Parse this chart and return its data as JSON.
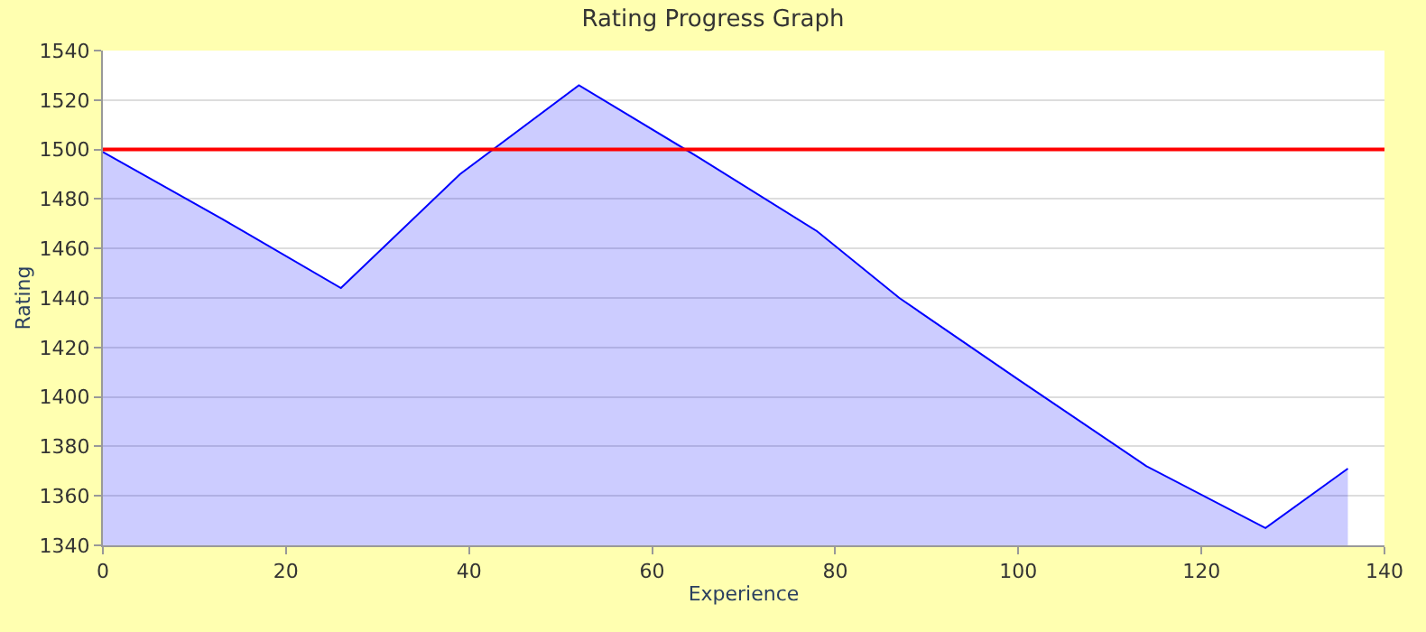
{
  "chart_data": {
    "type": "area",
    "title": "Rating Progress Graph",
    "xlabel": "Experience",
    "ylabel": "Rating",
    "x": [
      0,
      13,
      26,
      39,
      52,
      65,
      78,
      87,
      100,
      114,
      127,
      136
    ],
    "series": [
      {
        "color": "#0000ff",
        "values": [
          1499,
          1472,
          1444,
          1490,
          1526,
          1497,
          1467,
          1440,
          1407,
          1372,
          1347,
          1371
        ]
      }
    ],
    "xlim": [
      0,
      140
    ],
    "xticks": [
      0,
      20,
      40,
      60,
      80,
      100,
      120,
      140
    ],
    "ylim": [
      1340,
      1540
    ],
    "yticks": [
      1340,
      1360,
      1380,
      1400,
      1420,
      1440,
      1460,
      1480,
      1500,
      1520,
      1540
    ],
    "ref_lines": [
      {
        "axis": "y",
        "value": 1500,
        "color": "#ff0000"
      }
    ],
    "grid": "y"
  }
}
